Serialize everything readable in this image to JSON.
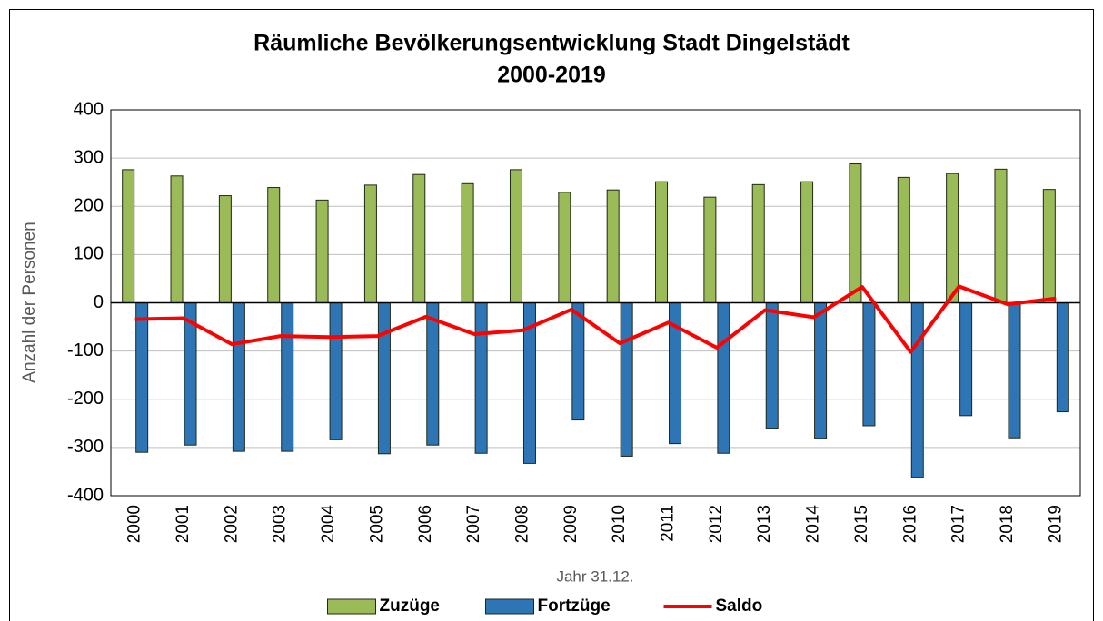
{
  "chart_data": {
    "type": "bar",
    "title": "Räumliche Bevölkerungsentwicklung Stadt Dingelstädt",
    "subtitle": "2000-2019",
    "x_label": "Jahr 31.12.",
    "y_label": "Anzahl der Personen",
    "categories": [
      "2000",
      "2001",
      "2002",
      "2003",
      "2004",
      "2005",
      "2006",
      "2007",
      "2008",
      "2009",
      "2010",
      "2011",
      "2012",
      "2013",
      "2014",
      "2015",
      "2016",
      "2017",
      "2018",
      "2019"
    ],
    "series": [
      {
        "name": "Zuzüge",
        "type": "bar",
        "color": "#9bbb59",
        "values": [
          276,
          263,
          222,
          239,
          213,
          244,
          266,
          247,
          276,
          229,
          234,
          251,
          219,
          245,
          251,
          288,
          260,
          268,
          277,
          235
        ]
      },
      {
        "name": "Fortzüge",
        "type": "bar",
        "color": "#2e75b6",
        "values": [
          -310,
          -295,
          -308,
          -308,
          -284,
          -313,
          -295,
          -312,
          -333,
          -243,
          -318,
          -292,
          -312,
          -260,
          -281,
          -255,
          -362,
          -234,
          -280,
          -226
        ]
      },
      {
        "name": "Saldo",
        "type": "line",
        "color": "#ff0000",
        "values": [
          -34,
          -32,
          -86,
          -69,
          -71,
          -69,
          -29,
          -65,
          -57,
          -14,
          -84,
          -41,
          -93,
          -15,
          -30,
          33,
          -102,
          34,
          -3,
          9
        ]
      }
    ],
    "ylim": [
      -400,
      400
    ],
    "yticks": [
      -400,
      -300,
      -200,
      -100,
      0,
      100,
      200,
      300,
      400
    ],
    "grid": true,
    "legend": "bottom"
  }
}
